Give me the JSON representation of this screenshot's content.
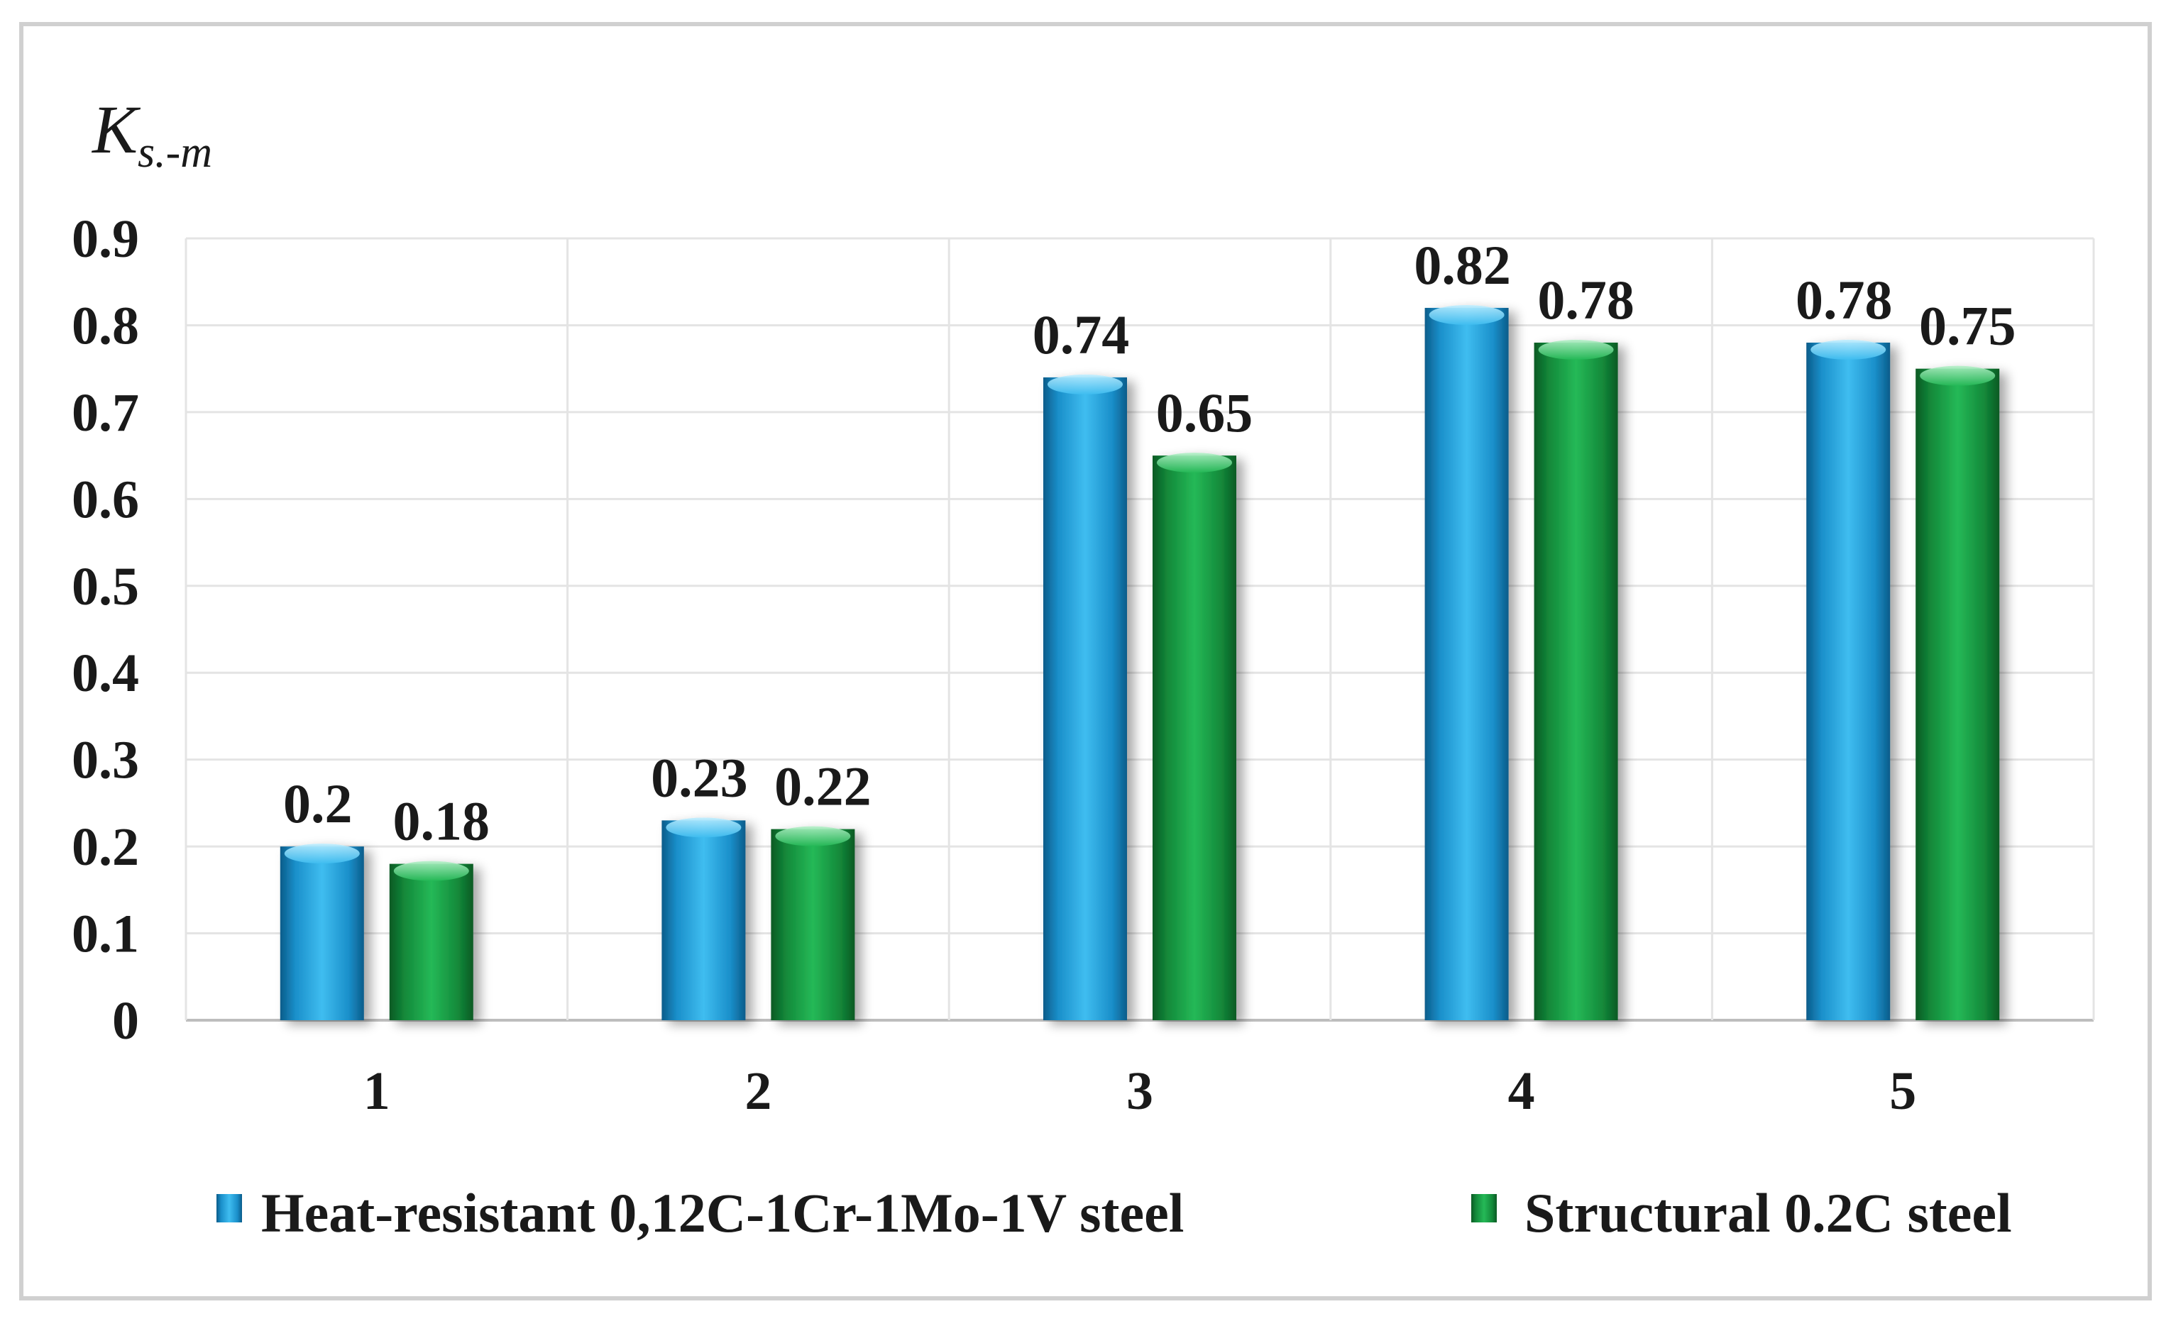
{
  "chart_data": {
    "type": "bar",
    "ylabel": "K",
    "ylabel_subscript": "s.-m",
    "categories": [
      "1",
      "2",
      "3",
      "4",
      "5"
    ],
    "y_ticks": [
      "0",
      "0.1",
      "0.2",
      "0.3",
      "0.4",
      "0.5",
      "0.6",
      "0.7",
      "0.8",
      "0.9"
    ],
    "ylim": [
      0,
      0.9
    ],
    "grid": true,
    "legend_position": "bottom",
    "series": [
      {
        "name": "Heat-resistant 0,12C-1Cr-1Mo-1V steel",
        "color": "#1ca0dc",
        "values": [
          0.2,
          0.23,
          0.74,
          0.82,
          0.78
        ],
        "labels": [
          "0.2",
          "0.23",
          "0.74",
          "0.82",
          "0.78"
        ]
      },
      {
        "name": "Structural 0.2C steel",
        "color": "#19a347",
        "values": [
          0.18,
          0.22,
          0.65,
          0.78,
          0.75
        ],
        "labels": [
          "0.18",
          "0.22",
          "0.65",
          "0.78",
          "0.75"
        ]
      }
    ]
  }
}
